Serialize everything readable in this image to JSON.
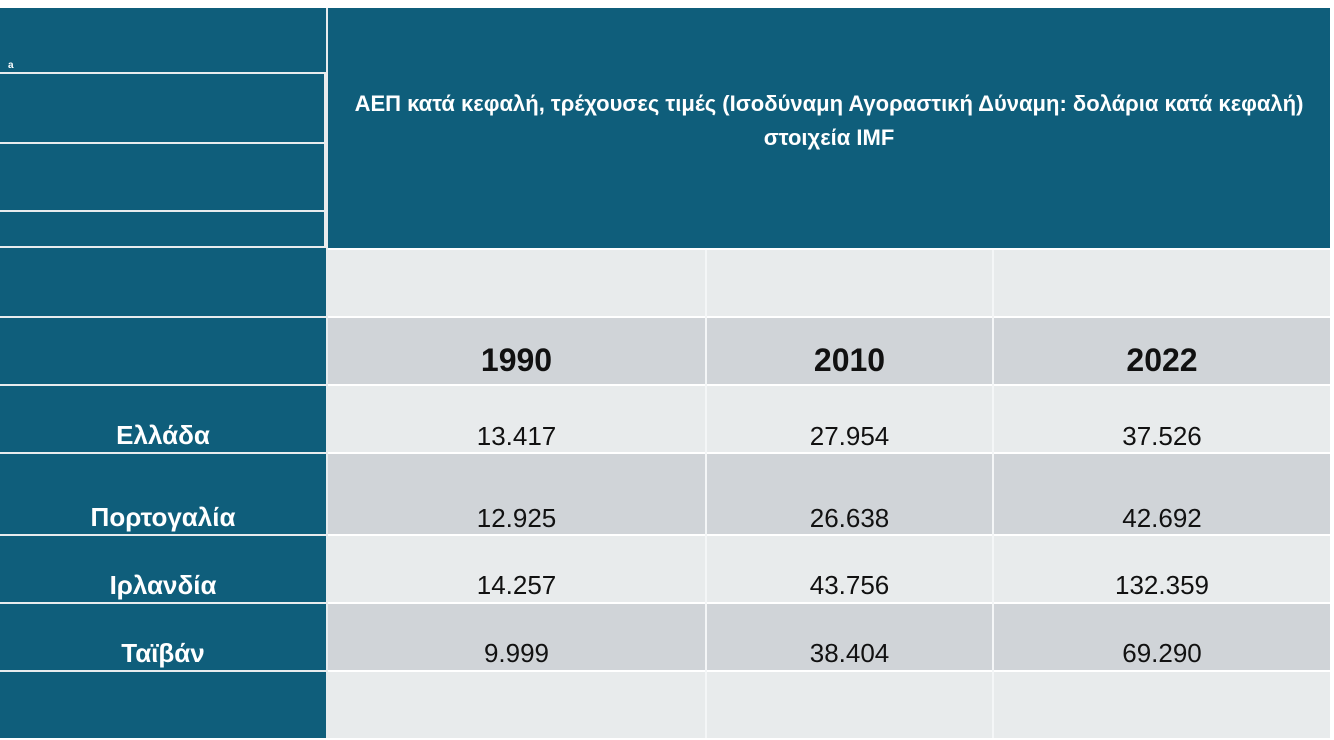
{
  "corner_mark": "a",
  "table": {
    "title": "ΑΕΠ κατά κεφαλή, τρέχουσες τιμές (Ισοδύναμη Αγοραστική Δύναμη: δολάρια κατά κεφαλή) στοιχεία IMF",
    "years": [
      "1990",
      "2010",
      "2022"
    ],
    "rows": [
      {
        "country": "Ελλάδα",
        "values": [
          "13.417",
          "27.954",
          "37.526"
        ]
      },
      {
        "country": "Πορτογαλία",
        "values": [
          "12.925",
          "26.638",
          "42.692"
        ]
      },
      {
        "country": "Ιρλανδία",
        "values": [
          "14.257",
          "43.756",
          "132.359"
        ]
      },
      {
        "country": "Ταϊβάν",
        "values": [
          "9.999",
          "38.404",
          "69.290"
        ]
      }
    ]
  },
  "colors": {
    "header_blue": "#0f5e7b",
    "band_light": "#e8ebec",
    "band_dark": "#d0d4d8"
  }
}
